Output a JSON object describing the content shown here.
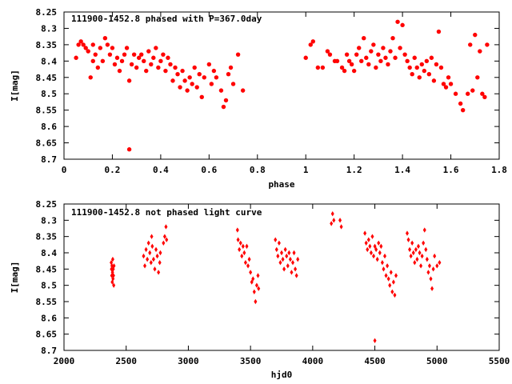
{
  "chart_data": [
    {
      "type": "scatter",
      "title": "111900-1452.8 phased with P=367.0day",
      "xlabel": "phase",
      "ylabel": "I[mag]",
      "xlim": [
        0,
        1.8
      ],
      "ylim": [
        8.25,
        8.7
      ],
      "y_inverted": true,
      "grid": false,
      "marker_color": "#ff0000",
      "marker": "filled-circle",
      "x_ticks": [
        "0",
        "0.2",
        "0.4",
        "0.6",
        "0.8",
        "1",
        "1.2",
        "1.4",
        "1.6",
        "1.8"
      ],
      "y_ticks": [
        "8.25",
        "8.3",
        "8.35",
        "8.4",
        "8.45",
        "8.5",
        "8.55",
        "8.6",
        "8.65",
        "8.7"
      ],
      "series": [
        {
          "points": [
            [
              0.05,
              8.39
            ],
            [
              0.06,
              8.35
            ],
            [
              0.07,
              8.34
            ],
            [
              0.08,
              8.35
            ],
            [
              0.09,
              8.36
            ],
            [
              0.1,
              8.37
            ],
            [
              0.11,
              8.45
            ],
            [
              0.12,
              8.4
            ],
            [
              0.12,
              8.35
            ],
            [
              0.13,
              8.38
            ],
            [
              0.14,
              8.42
            ],
            [
              0.15,
              8.36
            ],
            [
              0.16,
              8.4
            ],
            [
              0.17,
              8.33
            ],
            [
              0.18,
              8.35
            ],
            [
              0.19,
              8.38
            ],
            [
              0.2,
              8.36
            ],
            [
              0.21,
              8.41
            ],
            [
              0.22,
              8.39
            ],
            [
              0.23,
              8.43
            ],
            [
              0.24,
              8.4
            ],
            [
              0.25,
              8.38
            ],
            [
              0.26,
              8.36
            ],
            [
              0.27,
              8.46
            ],
            [
              0.28,
              8.41
            ],
            [
              0.29,
              8.38
            ],
            [
              0.3,
              8.42
            ],
            [
              0.31,
              8.39
            ],
            [
              0.32,
              8.38
            ],
            [
              0.33,
              8.4
            ],
            [
              0.34,
              8.43
            ],
            [
              0.35,
              8.37
            ],
            [
              0.36,
              8.41
            ],
            [
              0.37,
              8.39
            ],
            [
              0.38,
              8.36
            ],
            [
              0.39,
              8.42
            ],
            [
              0.4,
              8.4
            ],
            [
              0.41,
              8.38
            ],
            [
              0.42,
              8.43
            ],
            [
              0.43,
              8.39
            ],
            [
              0.44,
              8.41
            ],
            [
              0.45,
              8.46
            ],
            [
              0.46,
              8.42
            ],
            [
              0.47,
              8.44
            ],
            [
              0.48,
              8.48
            ],
            [
              0.49,
              8.43
            ],
            [
              0.5,
              8.46
            ],
            [
              0.51,
              8.49
            ],
            [
              0.52,
              8.45
            ],
            [
              0.53,
              8.47
            ],
            [
              0.54,
              8.42
            ],
            [
              0.55,
              8.48
            ],
            [
              0.56,
              8.44
            ],
            [
              0.57,
              8.51
            ],
            [
              0.58,
              8.45
            ],
            [
              0.6,
              8.41
            ],
            [
              0.61,
              8.47
            ],
            [
              0.62,
              8.43
            ],
            [
              0.63,
              8.45
            ],
            [
              0.65,
              8.49
            ],
            [
              0.66,
              8.54
            ],
            [
              0.67,
              8.52
            ],
            [
              0.68,
              8.44
            ],
            [
              0.69,
              8.42
            ],
            [
              0.7,
              8.47
            ],
            [
              0.72,
              8.38
            ],
            [
              0.74,
              8.49
            ],
            [
              0.27,
              8.67
            ],
            [
              1.0,
              8.39
            ],
            [
              1.02,
              8.35
            ],
            [
              1.03,
              8.34
            ],
            [
              1.05,
              8.42
            ],
            [
              1.07,
              8.42
            ],
            [
              1.09,
              8.37
            ],
            [
              1.1,
              8.38
            ],
            [
              1.12,
              8.4
            ],
            [
              1.13,
              8.4
            ],
            [
              1.15,
              8.42
            ],
            [
              1.16,
              8.43
            ],
            [
              1.17,
              8.38
            ],
            [
              1.18,
              8.4
            ],
            [
              1.19,
              8.41
            ],
            [
              1.2,
              8.43
            ],
            [
              1.21,
              8.38
            ],
            [
              1.22,
              8.36
            ],
            [
              1.23,
              8.4
            ],
            [
              1.24,
              8.33
            ],
            [
              1.25,
              8.39
            ],
            [
              1.26,
              8.41
            ],
            [
              1.27,
              8.37
            ],
            [
              1.28,
              8.35
            ],
            [
              1.29,
              8.42
            ],
            [
              1.3,
              8.38
            ],
            [
              1.31,
              8.4
            ],
            [
              1.32,
              8.36
            ],
            [
              1.33,
              8.39
            ],
            [
              1.34,
              8.41
            ],
            [
              1.35,
              8.37
            ],
            [
              1.36,
              8.33
            ],
            [
              1.37,
              8.39
            ],
            [
              1.38,
              8.28
            ],
            [
              1.39,
              8.36
            ],
            [
              1.4,
              8.29
            ],
            [
              1.41,
              8.38
            ],
            [
              1.42,
              8.4
            ],
            [
              1.43,
              8.42
            ],
            [
              1.44,
              8.44
            ],
            [
              1.45,
              8.39
            ],
            [
              1.46,
              8.42
            ],
            [
              1.47,
              8.45
            ],
            [
              1.48,
              8.41
            ],
            [
              1.49,
              8.43
            ],
            [
              1.5,
              8.4
            ],
            [
              1.51,
              8.44
            ],
            [
              1.52,
              8.39
            ],
            [
              1.53,
              8.46
            ],
            [
              1.54,
              8.41
            ],
            [
              1.55,
              8.31
            ],
            [
              1.56,
              8.42
            ],
            [
              1.57,
              8.47
            ],
            [
              1.58,
              8.48
            ],
            [
              1.59,
              8.45
            ],
            [
              1.6,
              8.47
            ],
            [
              1.62,
              8.5
            ],
            [
              1.64,
              8.53
            ],
            [
              1.65,
              8.55
            ],
            [
              1.67,
              8.5
            ],
            [
              1.68,
              8.35
            ],
            [
              1.69,
              8.49
            ],
            [
              1.7,
              8.32
            ],
            [
              1.71,
              8.45
            ],
            [
              1.72,
              8.37
            ],
            [
              1.73,
              8.5
            ],
            [
              1.74,
              8.51
            ],
            [
              1.75,
              8.35
            ]
          ]
        }
      ]
    },
    {
      "type": "scatter",
      "title": "111900-1452.8 not phased light curve",
      "xlabel": "hjd0",
      "ylabel": "I[mag]",
      "xlim": [
        2000,
        5500
      ],
      "ylim": [
        8.25,
        8.7
      ],
      "y_inverted": true,
      "grid": false,
      "marker_color": "#ff0000",
      "marker": "diamond",
      "x_ticks": [
        "2000",
        "2500",
        "3000",
        "3500",
        "4000",
        "4500",
        "5000",
        "5500"
      ],
      "y_ticks": [
        "8.25",
        "8.3",
        "8.35",
        "8.4",
        "8.45",
        "8.5",
        "8.55",
        "8.6",
        "8.65",
        "8.7"
      ],
      "series": [
        {
          "points": [
            [
              2380,
              8.43
            ],
            [
              2382,
              8.45
            ],
            [
              2384,
              8.47
            ],
            [
              2386,
              8.44
            ],
            [
              2388,
              8.49
            ],
            [
              2390,
              8.46
            ],
            [
              2392,
              8.42
            ],
            [
              2394,
              8.48
            ],
            [
              2396,
              8.45
            ],
            [
              2398,
              8.47
            ],
            [
              2400,
              8.5
            ],
            [
              2402,
              8.44
            ],
            [
              2640,
              8.41
            ],
            [
              2650,
              8.44
            ],
            [
              2660,
              8.39
            ],
            [
              2670,
              8.42
            ],
            [
              2680,
              8.37
            ],
            [
              2690,
              8.4
            ],
            [
              2700,
              8.43
            ],
            [
              2705,
              8.35
            ],
            [
              2710,
              8.38
            ],
            [
              2720,
              8.42
            ],
            [
              2730,
              8.45
            ],
            [
              2740,
              8.39
            ],
            [
              2750,
              8.41
            ],
            [
              2760,
              8.46
            ],
            [
              2770,
              8.43
            ],
            [
              2775,
              8.4
            ],
            [
              2800,
              8.37
            ],
            [
              2810,
              8.35
            ],
            [
              2820,
              8.32
            ],
            [
              2825,
              8.36
            ],
            [
              3395,
              8.33
            ],
            [
              3400,
              8.36
            ],
            [
              3410,
              8.39
            ],
            [
              3420,
              8.37
            ],
            [
              3430,
              8.41
            ],
            [
              3440,
              8.38
            ],
            [
              3450,
              8.4
            ],
            [
              3460,
              8.43
            ],
            [
              3470,
              8.38
            ],
            [
              3480,
              8.44
            ],
            [
              3490,
              8.42
            ],
            [
              3500,
              8.46
            ],
            [
              3510,
              8.49
            ],
            [
              3520,
              8.48
            ],
            [
              3530,
              8.52
            ],
            [
              3540,
              8.55
            ],
            [
              3550,
              8.5
            ],
            [
              3560,
              8.47
            ],
            [
              3565,
              8.51
            ],
            [
              3700,
              8.36
            ],
            [
              3710,
              8.39
            ],
            [
              3720,
              8.41
            ],
            [
              3730,
              8.37
            ],
            [
              3740,
              8.43
            ],
            [
              3750,
              8.4
            ],
            [
              3760,
              8.42
            ],
            [
              3770,
              8.45
            ],
            [
              3780,
              8.39
            ],
            [
              3790,
              8.41
            ],
            [
              3800,
              8.44
            ],
            [
              3810,
              8.4
            ],
            [
              3820,
              8.42
            ],
            [
              3830,
              8.46
            ],
            [
              3840,
              8.43
            ],
            [
              3850,
              8.4
            ],
            [
              3860,
              8.45
            ],
            [
              3870,
              8.47
            ],
            [
              3880,
              8.42
            ],
            [
              4150,
              8.31
            ],
            [
              4160,
              8.28
            ],
            [
              4170,
              8.3
            ],
            [
              4220,
              8.3
            ],
            [
              4230,
              8.32
            ],
            [
              4420,
              8.34
            ],
            [
              4430,
              8.37
            ],
            [
              4440,
              8.39
            ],
            [
              4450,
              8.36
            ],
            [
              4460,
              8.38
            ],
            [
              4470,
              8.4
            ],
            [
              4480,
              8.35
            ],
            [
              4490,
              8.41
            ],
            [
              4500,
              8.38
            ],
            [
              4510,
              8.39
            ],
            [
              4520,
              8.42
            ],
            [
              4530,
              8.37
            ],
            [
              4540,
              8.4
            ],
            [
              4550,
              8.38
            ],
            [
              4560,
              8.43
            ],
            [
              4570,
              8.45
            ],
            [
              4580,
              8.41
            ],
            [
              4590,
              8.47
            ],
            [
              4600,
              8.44
            ],
            [
              4610,
              8.48
            ],
            [
              4620,
              8.5
            ],
            [
              4630,
              8.46
            ],
            [
              4640,
              8.52
            ],
            [
              4650,
              8.49
            ],
            [
              4660,
              8.53
            ],
            [
              4670,
              8.47
            ],
            [
              4500,
              8.67
            ],
            [
              4760,
              8.34
            ],
            [
              4770,
              8.36
            ],
            [
              4780,
              8.39
            ],
            [
              4790,
              8.41
            ],
            [
              4800,
              8.37
            ],
            [
              4810,
              8.4
            ],
            [
              4820,
              8.43
            ],
            [
              4830,
              8.39
            ],
            [
              4840,
              8.42
            ],
            [
              4850,
              8.38
            ],
            [
              4860,
              8.4
            ],
            [
              4870,
              8.44
            ],
            [
              4880,
              8.41
            ],
            [
              4890,
              8.37
            ],
            [
              4900,
              8.33
            ],
            [
              4910,
              8.39
            ],
            [
              4920,
              8.42
            ],
            [
              4930,
              8.46
            ],
            [
              4940,
              8.44
            ],
            [
              4950,
              8.48
            ],
            [
              4960,
              8.51
            ],
            [
              4970,
              8.45
            ],
            [
              4980,
              8.41
            ],
            [
              5000,
              8.44
            ],
            [
              5020,
              8.43
            ]
          ]
        }
      ]
    }
  ]
}
